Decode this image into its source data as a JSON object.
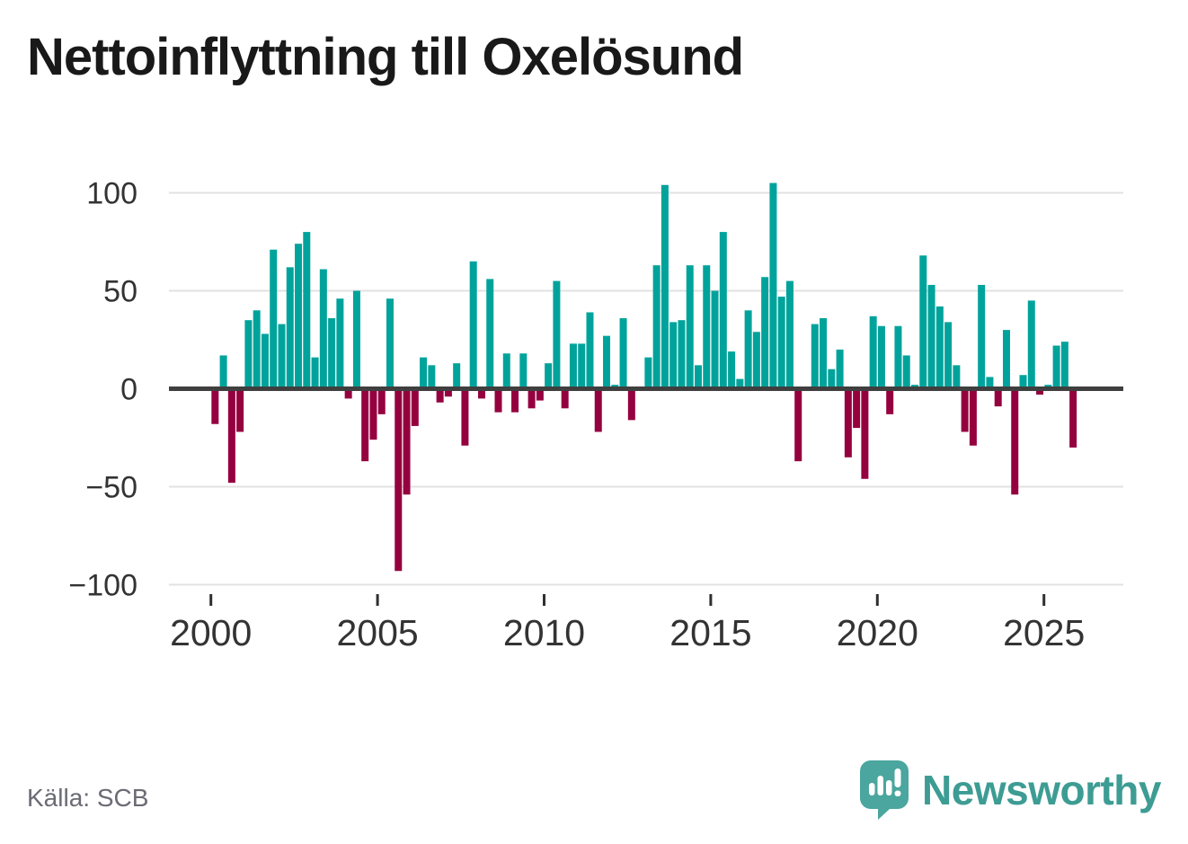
{
  "chart_data": {
    "type": "bar",
    "title": "Nettoinflyttning till Oxelösund",
    "source": "Källa: SCB",
    "x_tick_labels": [
      "2000",
      "2005",
      "2010",
      "2015",
      "2020",
      "2025"
    ],
    "y_tick_values": [
      100,
      50,
      0,
      -50,
      -100
    ],
    "y_tick_labels": [
      "100",
      "50",
      "0",
      "−50",
      "−100"
    ],
    "ylim": [
      -110,
      112
    ],
    "grid": "horizontal",
    "legend": "none",
    "positive_color": "#00A39B",
    "negative_color": "#95003F",
    "periods": [
      "2000-Q1",
      "2000-Q2",
      "2000-Q3",
      "2000-Q4",
      "2001-Q1",
      "2001-Q2",
      "2001-Q3",
      "2001-Q4",
      "2002-Q1",
      "2002-Q2",
      "2002-Q3",
      "2002-Q4",
      "2003-Q1",
      "2003-Q2",
      "2003-Q3",
      "2003-Q4",
      "2004-Q1",
      "2004-Q2",
      "2004-Q3",
      "2004-Q4",
      "2005-Q1",
      "2005-Q2",
      "2005-Q3",
      "2005-Q4",
      "2006-Q1",
      "2006-Q2",
      "2006-Q3",
      "2006-Q4",
      "2007-Q1",
      "2007-Q2",
      "2007-Q3",
      "2007-Q4",
      "2008-Q1",
      "2008-Q2",
      "2008-Q3",
      "2008-Q4",
      "2009-Q1",
      "2009-Q2",
      "2009-Q3",
      "2009-Q4",
      "2010-Q1",
      "2010-Q2",
      "2010-Q3",
      "2010-Q4",
      "2011-Q1",
      "2011-Q2",
      "2011-Q3",
      "2011-Q4",
      "2012-Q1",
      "2012-Q2",
      "2012-Q3",
      "2012-Q4",
      "2013-Q1",
      "2013-Q2",
      "2013-Q3",
      "2013-Q4",
      "2014-Q1",
      "2014-Q2",
      "2014-Q3",
      "2014-Q4",
      "2015-Q1",
      "2015-Q2",
      "2015-Q3",
      "2015-Q4",
      "2016-Q1",
      "2016-Q2",
      "2016-Q3",
      "2016-Q4",
      "2017-Q1",
      "2017-Q2",
      "2017-Q3",
      "2017-Q4",
      "2018-Q1",
      "2018-Q2",
      "2018-Q3",
      "2018-Q4",
      "2019-Q1",
      "2019-Q2",
      "2019-Q3",
      "2019-Q4",
      "2020-Q1",
      "2020-Q2",
      "2020-Q3",
      "2020-Q4",
      "2021-Q1",
      "2021-Q2",
      "2021-Q3",
      "2021-Q4",
      "2022-Q1",
      "2022-Q2",
      "2022-Q3",
      "2022-Q4",
      "2023-Q1",
      "2023-Q2",
      "2023-Q3",
      "2023-Q4",
      "2024-Q1",
      "2024-Q2",
      "2024-Q3",
      "2024-Q4",
      "2025-Q1",
      "2025-Q2",
      "2025-Q3",
      "2025-Q4"
    ],
    "values": [
      -18,
      17,
      -48,
      -22,
      35,
      40,
      28,
      71,
      33,
      62,
      74,
      80,
      16,
      61,
      36,
      46,
      -5,
      50,
      -37,
      -26,
      -13,
      46,
      -93,
      -54,
      -19,
      16,
      12,
      -7,
      -4,
      13,
      -29,
      65,
      -5,
      56,
      -12,
      18,
      -12,
      18,
      -10,
      -6,
      13,
      55,
      -10,
      23,
      23,
      39,
      -22,
      27,
      2,
      36,
      -16,
      0,
      16,
      63,
      104,
      34,
      35,
      63,
      12,
      63,
      50,
      80,
      19,
      5,
      40,
      29,
      57,
      105,
      47,
      55,
      -37,
      0,
      33,
      36,
      10,
      20,
      -35,
      -20,
      -46,
      37,
      32,
      -13,
      32,
      17,
      2,
      68,
      53,
      42,
      34,
      12,
      -22,
      -29,
      53,
      6,
      -9,
      30,
      -54,
      7,
      45,
      -3,
      2,
      22,
      24,
      -30
    ]
  },
  "footer": {
    "source": "Källa: SCB"
  },
  "logo": {
    "text": "Newsworthy",
    "text_color": "#3d9c93",
    "bubble_color": "#4AA69E",
    "icon": "speech-bubble-bar-chart-exclamation"
  }
}
